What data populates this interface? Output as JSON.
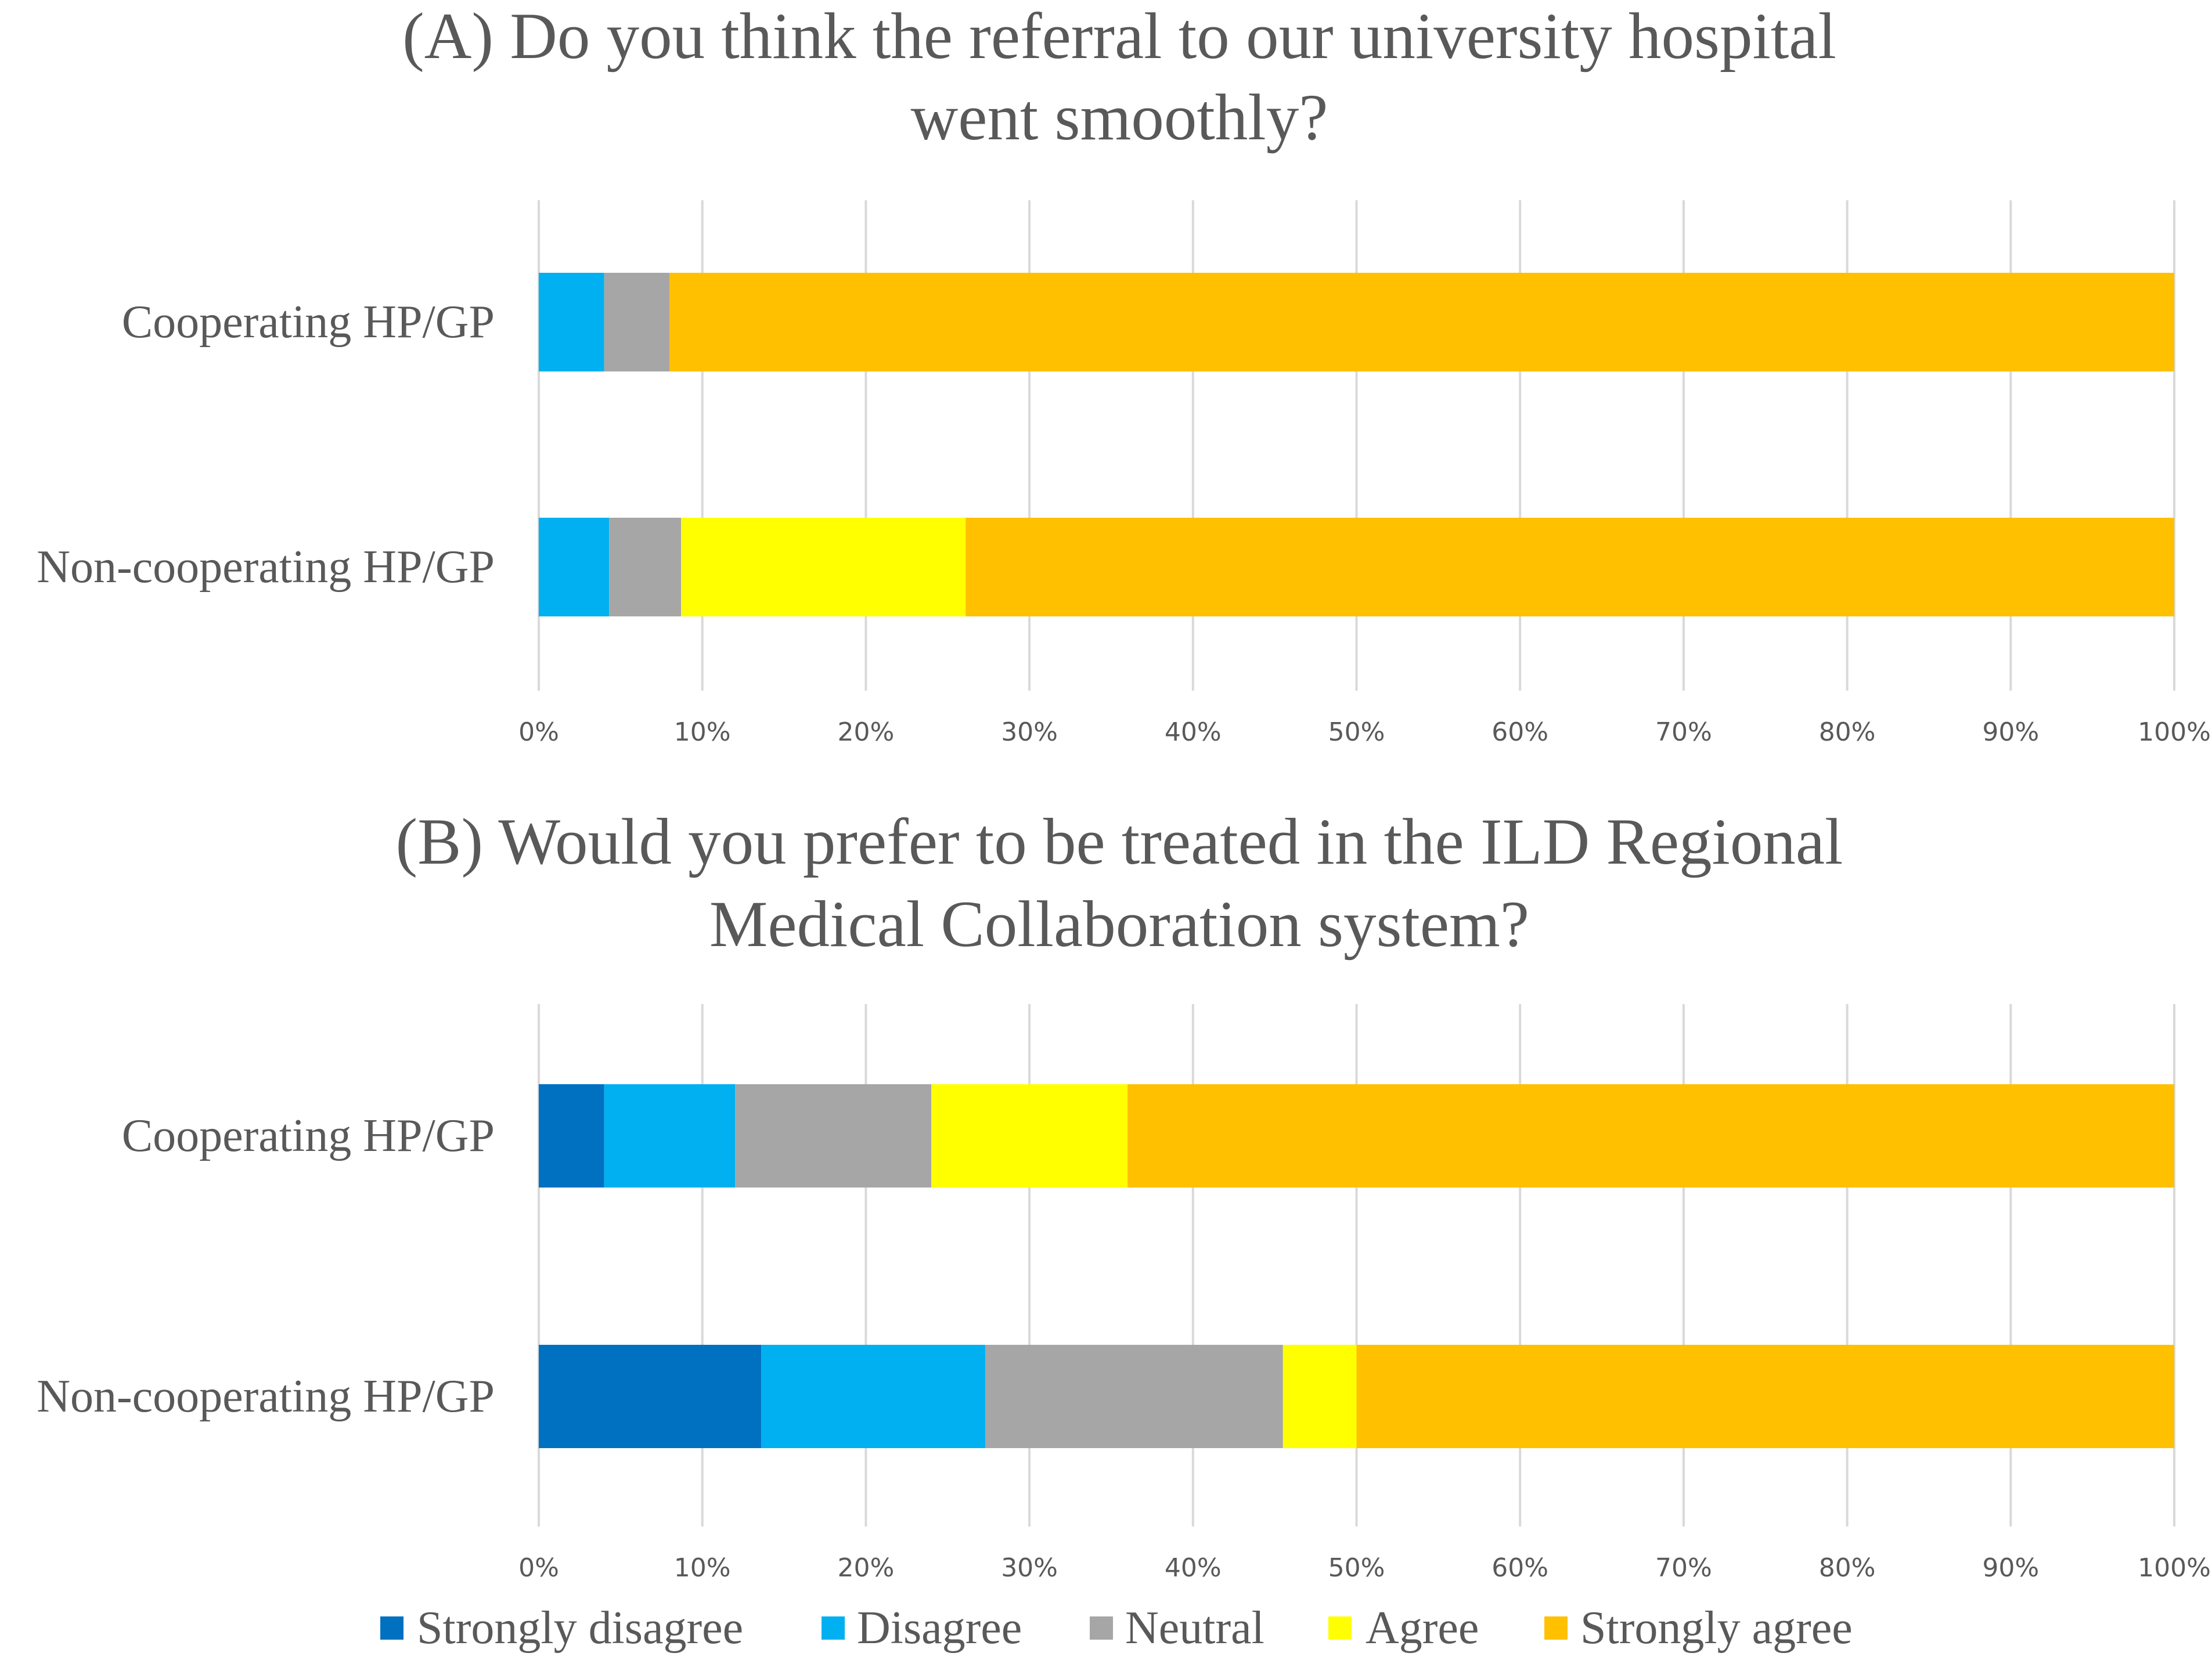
{
  "chart_data": [
    {
      "type": "bar",
      "orientation": "horizontal",
      "stacked": "percent",
      "title_lines": [
        "(A) Do you think the referral to our university hospital",
        "went smoothly?"
      ],
      "categories": [
        "Cooperating HP/GP",
        "Non-cooperating HP/GP"
      ],
      "series": [
        {
          "name": "Strongly disagree",
          "values": [
            0,
            0
          ]
        },
        {
          "name": "Disagree",
          "values": [
            4,
            4.3
          ]
        },
        {
          "name": "Neutral",
          "values": [
            4,
            4.4
          ]
        },
        {
          "name": "Agree",
          "values": [
            0,
            17.4
          ]
        },
        {
          "name": "Strongly agree",
          "values": [
            92,
            73.9
          ]
        }
      ],
      "xlim": [
        0,
        100
      ],
      "xticks": [
        "0%",
        "10%",
        "20%",
        "30%",
        "40%",
        "50%",
        "60%",
        "70%",
        "80%",
        "90%",
        "100%"
      ],
      "grid": true
    },
    {
      "type": "bar",
      "orientation": "horizontal",
      "stacked": "percent",
      "title_lines": [
        "(B) Would you prefer to be treated in the ILD Regional",
        "Medical Collaboration system?"
      ],
      "categories": [
        "Cooperating HP/GP",
        "Non-cooperating HP/GP"
      ],
      "series": [
        {
          "name": "Strongly disagree",
          "values": [
            4,
            13.6
          ]
        },
        {
          "name": "Disagree",
          "values": [
            8,
            13.7
          ]
        },
        {
          "name": "Neutral",
          "values": [
            12,
            18.2
          ]
        },
        {
          "name": "Agree",
          "values": [
            12,
            4.5
          ]
        },
        {
          "name": "Strongly agree",
          "values": [
            64,
            50
          ]
        }
      ],
      "xlim": [
        0,
        100
      ],
      "xticks": [
        "0%",
        "10%",
        "20%",
        "30%",
        "40%",
        "50%",
        "60%",
        "70%",
        "80%",
        "90%",
        "100%"
      ],
      "grid": true
    }
  ],
  "legend": {
    "position": "bottom",
    "items": [
      {
        "label": "Strongly disagree",
        "color": "#0070c0"
      },
      {
        "label": "Disagree",
        "color": "#00b0f0"
      },
      {
        "label": "Neutral",
        "color": "#a6a6a6"
      },
      {
        "label": "Agree",
        "color": "#ffff00"
      },
      {
        "label": "Strongly agree",
        "color": "#ffc000"
      }
    ]
  }
}
